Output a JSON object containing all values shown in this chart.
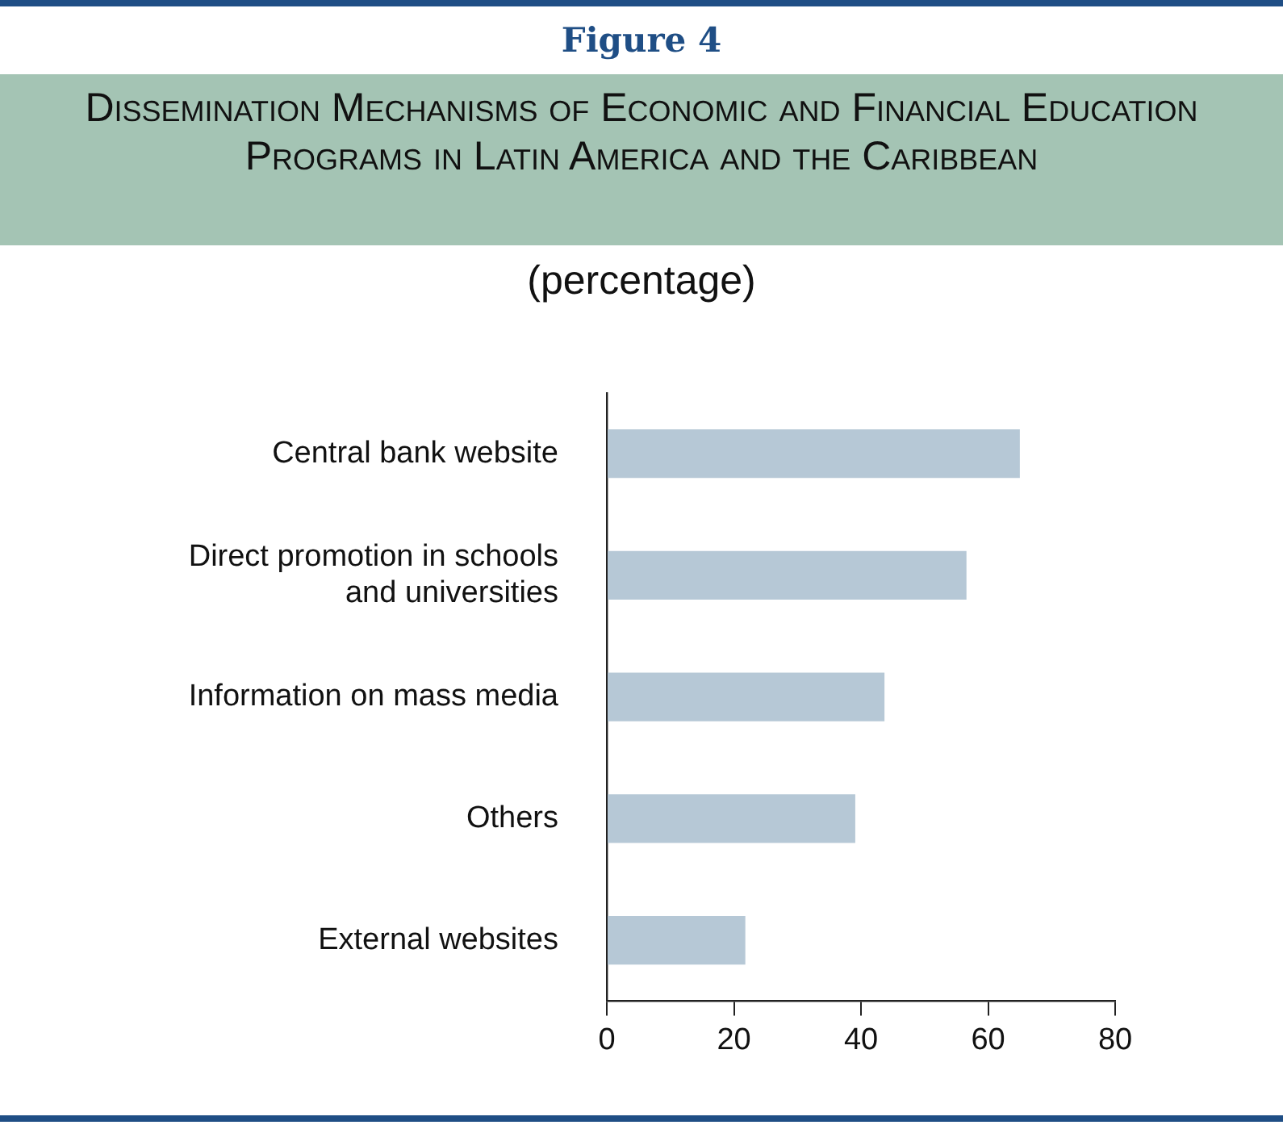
{
  "chart_data": {
    "type": "bar",
    "orientation": "horizontal",
    "title": "Figure 4",
    "subtitle": "Dissemination Mechanisms of Economic and Financial Education Programs in Latin America and the Caribbean",
    "xlabel": "(percentage)",
    "categories": [
      "Central bank website",
      "Direct promotion in schools and universities",
      "Information on mass media",
      "Others",
      "External websites"
    ],
    "values": [
      65,
      56.6,
      43.7,
      39.1,
      21.8
    ],
    "color": "#b6c8d6",
    "xlim": [
      0,
      80
    ],
    "xticks": [
      0,
      20,
      40,
      60,
      80
    ],
    "grid": false,
    "legend": false
  }
}
